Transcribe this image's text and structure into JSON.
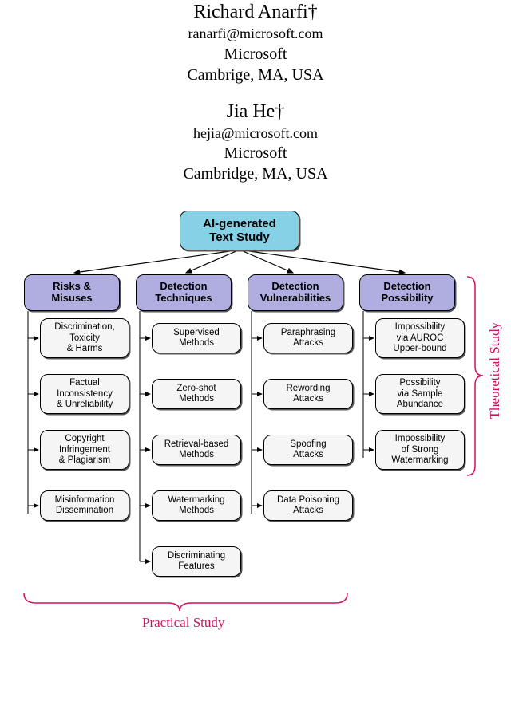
{
  "authors": [
    {
      "name": "Richard Anarfi†",
      "email": "ranarfi@microsoft.com",
      "org": "Microsoft",
      "loc": "Cambrige, MA, USA"
    },
    {
      "name": "Jia He†",
      "email": "hejia@microsoft.com",
      "org": "Microsoft",
      "loc": "Cambridge, MA, USA"
    }
  ],
  "diagram": {
    "root": "AI-generated\nText Study",
    "categories": [
      {
        "label": "Risks &\nMisuses"
      },
      {
        "label": "Detection\nTechniques"
      },
      {
        "label": "Detection\nVulnerabilities"
      },
      {
        "label": "Detection\nPossibility"
      }
    ],
    "columns": [
      [
        "Discrimination,\nToxicity\n& Harms",
        "Factual\nInconsistency\n& Unreliability",
        "Copyright\nInfringement\n& Plagiarism",
        "Misinformation\nDissemination"
      ],
      [
        "Supervised\nMethods",
        "Zero-shot\nMethods",
        "Retrieval-based\nMethods",
        "Watermarking\nMethods",
        "Discriminating\nFeatures"
      ],
      [
        "Paraphrasing\nAttacks",
        "Rewording\nAttacks",
        "Spoofing\nAttacks",
        "Data Poisoning\nAttacks"
      ],
      [
        "Impossibility\nvia AUROC\nUpper-bound",
        "Possibility\nvia Sample\nAbundance",
        "Impossibility\nof Strong\nWatermarking"
      ]
    ],
    "braces": {
      "theoretical": "Theoretical Study",
      "practical": "Practical Study"
    },
    "colors": {
      "root_bg": "#87d1e6",
      "cat_bg": "#b0aee0",
      "leaf_bg": "#f5f5f5",
      "brace": "#d01060"
    }
  }
}
